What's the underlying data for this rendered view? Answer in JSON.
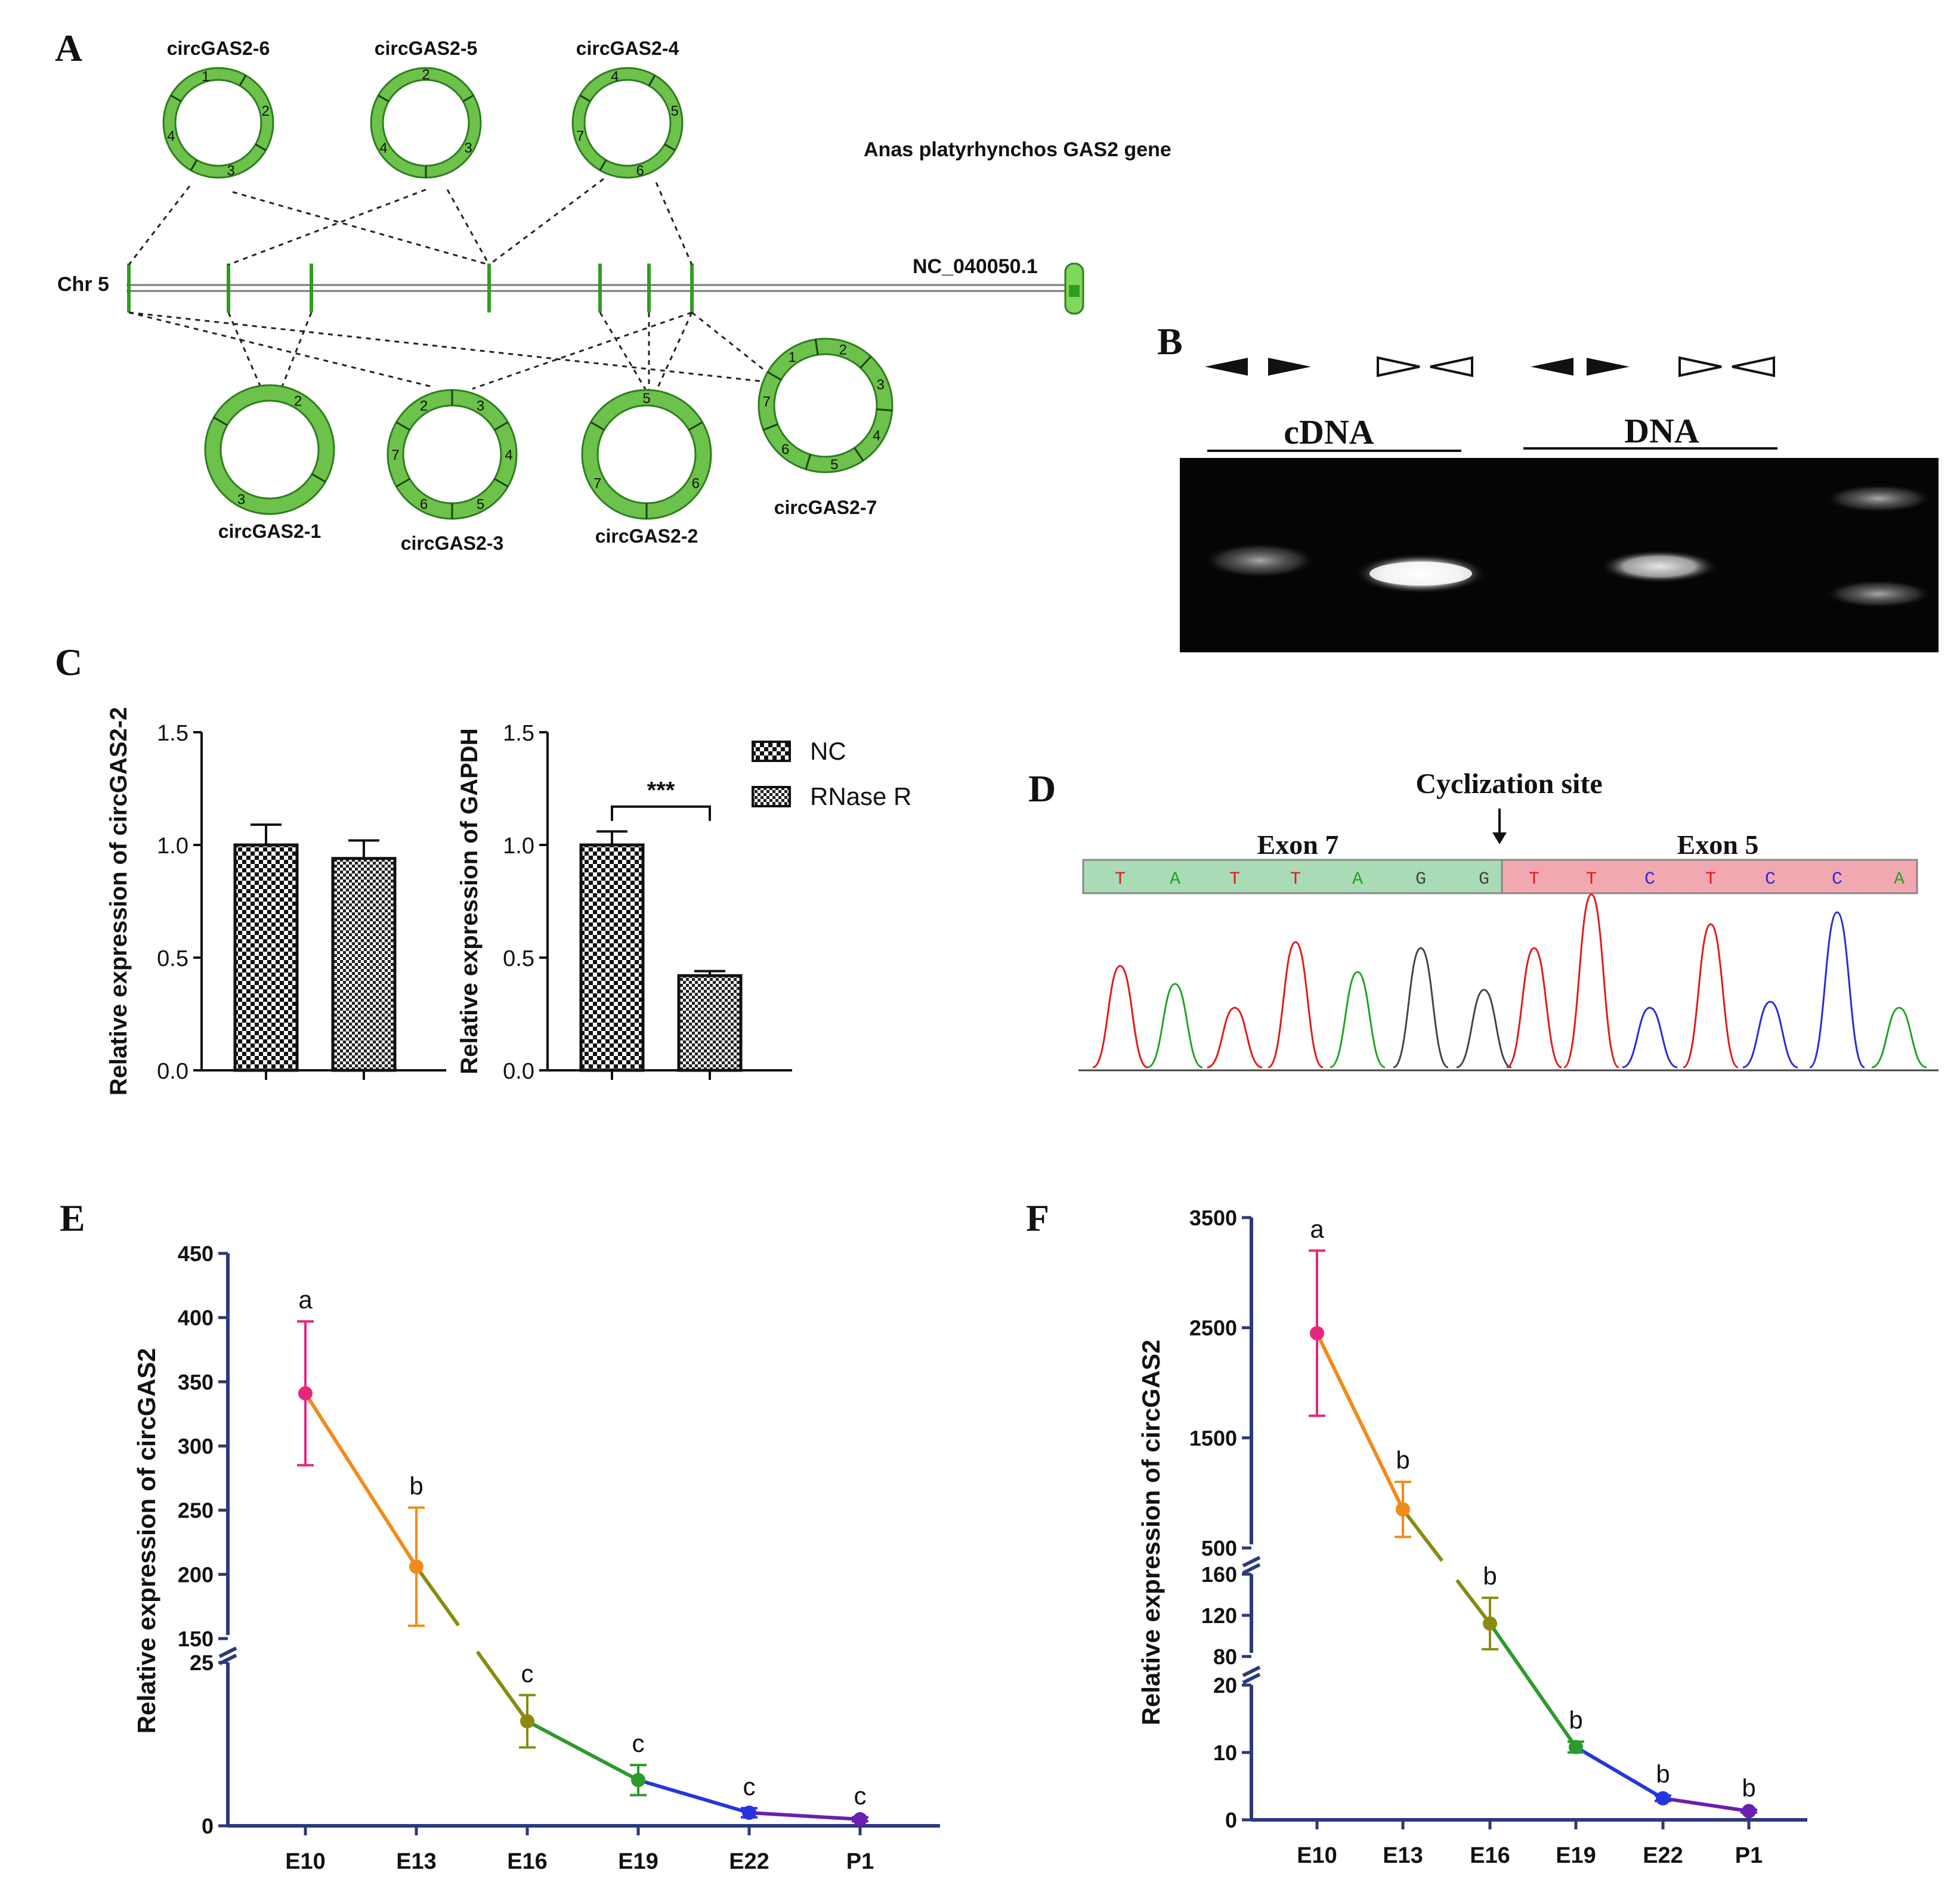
{
  "panels": {
    "A": {
      "letter": "A",
      "gene_title": "Anas platyrhynchos GAS2 gene",
      "chromosome": "Chr 5",
      "accession": "NC_040050.1",
      "circles_top": [
        {
          "name": "circGAS2-6",
          "exons": [
            "1",
            "2",
            "3",
            "4"
          ]
        },
        {
          "name": "circGAS2-5",
          "exons": [
            "2",
            "3",
            "4"
          ]
        },
        {
          "name": "circGAS2-4",
          "exons": [
            "4",
            "5",
            "6",
            "7"
          ]
        }
      ],
      "circles_bottom": [
        {
          "name": "circGAS2-1",
          "exons": [
            "2",
            "3"
          ]
        },
        {
          "name": "circGAS2-3",
          "exons": [
            "2",
            "3",
            "4",
            "5",
            "6",
            "7"
          ]
        },
        {
          "name": "circGAS2-2",
          "exons": [
            "5",
            "6",
            "7"
          ]
        },
        {
          "name": "circGAS2-7",
          "exons": [
            "1",
            "2",
            "3",
            "4",
            "5",
            "6",
            "7"
          ]
        }
      ],
      "colors": {
        "exon": "#6cc24a",
        "exon_stroke": "#2e7d1e",
        "line": "#555555"
      }
    },
    "B": {
      "letter": "B",
      "groups": [
        {
          "label": "cDNA"
        },
        {
          "label": "DNA"
        }
      ],
      "primer_pairs": [
        "divergent-filled",
        "convergent-open",
        "divergent-filled",
        "convergent-open"
      ]
    },
    "C": {
      "letter": "C"
    },
    "D": {
      "letter": "D",
      "title": "Cyclization site",
      "left_exon": "Exon 7",
      "right_exon": "Exon 5",
      "left_bases": [
        "T",
        "A",
        "T",
        "T",
        "A",
        "G",
        "G"
      ],
      "right_bases": [
        "T",
        "T",
        "C",
        "T",
        "C",
        "C",
        "A"
      ],
      "base_colors": {
        "A": "#1ea51e",
        "C": "#2a2ad8",
        "G": "#444444",
        "T": "#e11b1b"
      }
    },
    "E": {
      "letter": "E"
    },
    "F": {
      "letter": "F"
    }
  },
  "chart_data": [
    {
      "id": "C1",
      "type": "bar",
      "categories": [
        "NC",
        "RNase R"
      ],
      "values": [
        1.0,
        0.94
      ],
      "errors": [
        0.09,
        0.08
      ],
      "ylabel": "Relative expression of circGAS2-2",
      "ylim": [
        0,
        1.5
      ],
      "yticks": [
        "0.0",
        "0.5",
        "1.0",
        "1.5"
      ]
    },
    {
      "id": "C2",
      "type": "bar",
      "categories": [
        "NC",
        "RNase R"
      ],
      "values": [
        1.0,
        0.42
      ],
      "errors": [
        0.06,
        0.02
      ],
      "ylabel": "Relative expression of GAPDH",
      "ylim": [
        0,
        1.5
      ],
      "yticks": [
        "0.0",
        "0.5",
        "1.0",
        "1.5"
      ],
      "significance": "***",
      "legend": [
        "NC",
        "RNase R"
      ]
    },
    {
      "id": "E",
      "type": "line",
      "categories": [
        "E10",
        "E13",
        "E16",
        "E19",
        "E22",
        "P1"
      ],
      "values": [
        341,
        206,
        16,
        7,
        2,
        1
      ],
      "err_low": [
        56,
        46,
        4,
        2.3,
        0.7,
        0.3
      ],
      "err_high": [
        56,
        46,
        4,
        2.3,
        0.7,
        0.3
      ],
      "letters": [
        "a",
        "b",
        "c",
        "c",
        "c",
        "c"
      ],
      "colors": [
        "#e8257d",
        "#f28a1b",
        "#8a8a10",
        "#2c9a2c",
        "#2435e0",
        "#6a1fb0"
      ],
      "ylabel": "Relative expression of circGAS2",
      "axis_break": [
        25,
        150
      ],
      "yticks_low": [
        "0",
        "25"
      ],
      "yticks_high": [
        "150",
        "200",
        "250",
        "300",
        "350",
        "400",
        "450"
      ]
    },
    {
      "id": "F",
      "type": "line",
      "categories": [
        "E10",
        "E13",
        "E16",
        "E19",
        "E22",
        "P1"
      ],
      "values": [
        2450,
        850,
        112,
        10.8,
        3.2,
        1.3
      ],
      "err_low": [
        750,
        250,
        25,
        0.8,
        0.4,
        0.2
      ],
      "err_high": [
        750,
        250,
        25,
        0.8,
        0.4,
        0.2
      ],
      "letters": [
        "a",
        "b",
        "b",
        "b",
        "b",
        "b"
      ],
      "colors": [
        "#e8257d",
        "#f28a1b",
        "#8a8a10",
        "#2c9a2c",
        "#2435e0",
        "#6a1fb0"
      ],
      "ylabel": "Relative expression of circGAS2",
      "axis_breaks": [
        [
          20,
          80
        ],
        [
          160,
          500
        ]
      ],
      "yticks_1": [
        "0",
        "10",
        "20"
      ],
      "yticks_2": [
        "80",
        "120",
        "160"
      ],
      "yticks_3": [
        "500",
        "1500",
        "2500",
        "3500"
      ]
    }
  ]
}
